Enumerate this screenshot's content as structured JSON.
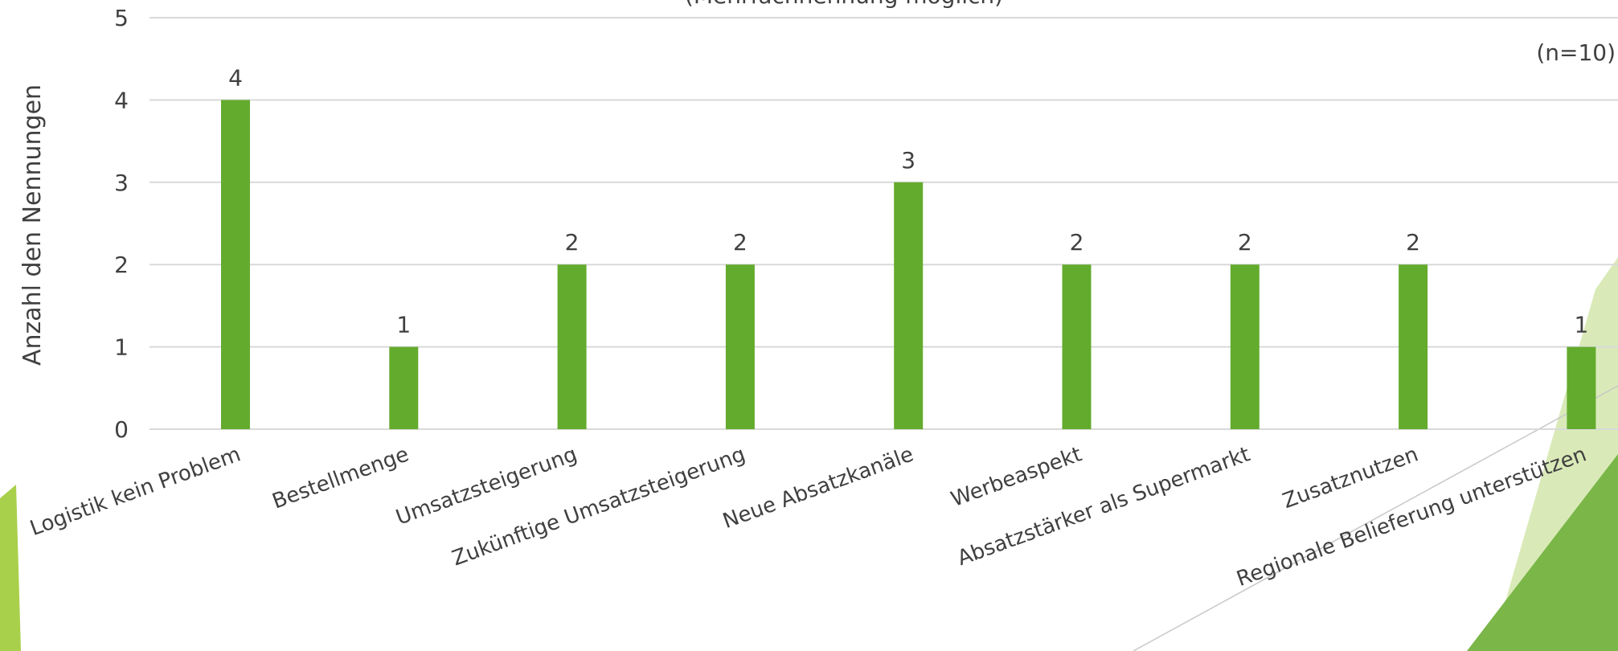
{
  "chart_data": {
    "type": "bar",
    "subtitle": "(Mehrfachnennung möglich)",
    "annotation": "(n=10)",
    "y_label": "Anzahl den Nennungen",
    "categories": [
      "Logistik kein Problem",
      "Bestellmenge",
      "Umsatzsteigerung",
      "Zukünftige Umsatzsteigerung",
      "Neue Absatzkanäle",
      "Werbeaspekt",
      "Absatzstärker als Supermarkt",
      "Zusatznutzen",
      "Regionale Belieferung unterstützen"
    ],
    "values": [
      4,
      1,
      2,
      2,
      3,
      2,
      2,
      2,
      1
    ],
    "color": "#63ab2d",
    "ylim": [
      0,
      5
    ],
    "yticks": [
      0,
      1,
      2,
      3,
      4,
      5
    ],
    "grid": true
  }
}
